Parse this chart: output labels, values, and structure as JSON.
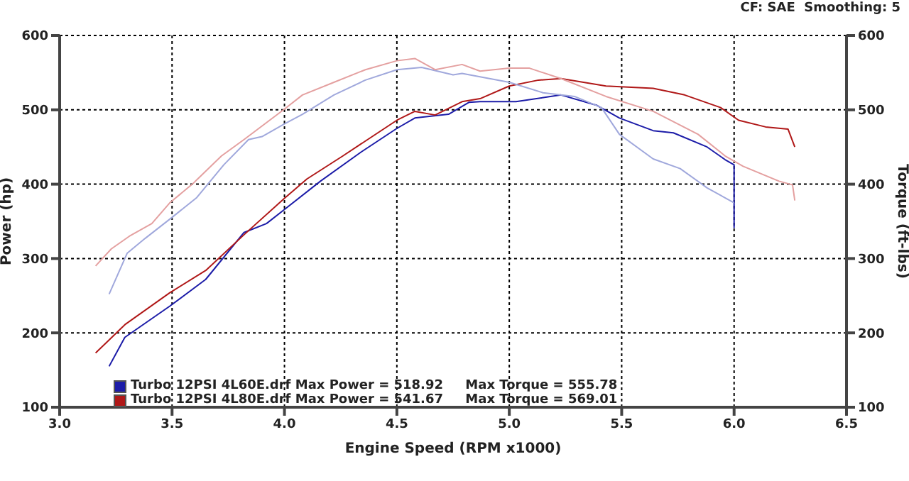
{
  "chart_data": {
    "type": "line",
    "annotations": [
      "CF: SAE  Smoothing: 5"
    ],
    "xlabel": "Engine Speed (RPM x1000)",
    "ylabel": "Power (hp)",
    "y2label": "Torque (ft-lbs)",
    "xlim": [
      3.0,
      6.5
    ],
    "xticks": [
      {
        "value": 3,
        "label": "3.0"
      },
      3.5,
      {
        "value": 4,
        "label": "4.0"
      },
      4.5,
      {
        "value": 5,
        "label": "5.0"
      },
      5.5,
      {
        "value": 6,
        "label": "6.0"
      },
      6.5
    ],
    "ylim": [
      100,
      600
    ],
    "yticks": [
      100,
      200,
      300,
      400,
      500,
      600
    ],
    "y2lim": [
      100,
      600
    ],
    "y2ticks": [
      100,
      200,
      300,
      400,
      500,
      600
    ],
    "grid": true,
    "legend": "bottom",
    "line_style": "solid",
    "marker": "none",
    "series": [
      {
        "name": "Turbo 12PSI 4L60E.drf Max Power = 518.92     Max Torque = 555.78",
        "color": "#1c1ca8",
        "x": [
          3.22,
          3.29,
          3.49,
          3.65,
          3.82,
          3.92,
          4.0,
          4.16,
          4.34,
          4.5,
          4.58,
          4.73,
          4.82,
          4.87,
          5.03,
          5.23,
          5.39,
          5.49,
          5.64,
          5.73,
          5.88,
          5.96,
          6.0,
          6.0
        ],
        "values": [
          155,
          194,
          236,
          272,
          335,
          347,
          366,
          404,
          443,
          475,
          489,
          494,
          510,
          511,
          511,
          520,
          506,
          489,
          472,
          469,
          450,
          433,
          426,
          341
        ]
      },
      {
        "name": "Turbo 12PSI 4L80E.drf Max Power = 541.67     Max Torque = 569.01",
        "color": "#b01818",
        "x": [
          3.16,
          3.29,
          3.49,
          3.65,
          3.82,
          4.0,
          4.1,
          4.26,
          4.5,
          4.58,
          4.67,
          4.79,
          4.87,
          5.0,
          5.13,
          5.23,
          5.43,
          5.64,
          5.78,
          5.94,
          6.02,
          6.14,
          6.24,
          6.27
        ],
        "values": [
          173,
          211,
          254,
          284,
          332,
          381,
          407,
          438,
          486,
          498,
          493,
          511,
          515,
          532,
          540,
          542,
          532,
          529,
          520,
          503,
          486,
          477,
          474,
          450
        ]
      },
      {
        "color": "#a0a8dc",
        "x": [
          3.22,
          3.3,
          3.38,
          3.49,
          3.61,
          3.73,
          3.84,
          3.9,
          4.0,
          4.08,
          4.22,
          4.36,
          4.5,
          4.61,
          4.75,
          4.79,
          5.0,
          5.15,
          5.29,
          5.41,
          5.49,
          5.64,
          5.76,
          5.88,
          6.0
        ],
        "values": [
          252,
          307,
          327,
          353,
          382,
          426,
          460,
          464,
          481,
          494,
          520,
          540,
          554,
          557,
          547,
          549,
          537,
          523,
          518,
          503,
          467,
          434,
          421,
          395,
          375
        ]
      },
      {
        "color": "#e4a0a0",
        "x": [
          3.16,
          3.23,
          3.31,
          3.41,
          3.49,
          3.59,
          3.72,
          3.82,
          4.0,
          4.08,
          4.22,
          4.36,
          4.5,
          4.58,
          4.67,
          4.79,
          4.87,
          5.0,
          5.09,
          5.23,
          5.43,
          5.64,
          5.84,
          5.96,
          6.04,
          6.2,
          6.26,
          6.27
        ],
        "values": [
          290,
          313,
          330,
          347,
          375,
          400,
          438,
          460,
          501,
          520,
          537,
          554,
          566,
          569,
          554,
          561,
          552,
          556,
          556,
          542,
          518,
          498,
          467,
          438,
          424,
          404,
          399,
          378
        ]
      }
    ]
  }
}
